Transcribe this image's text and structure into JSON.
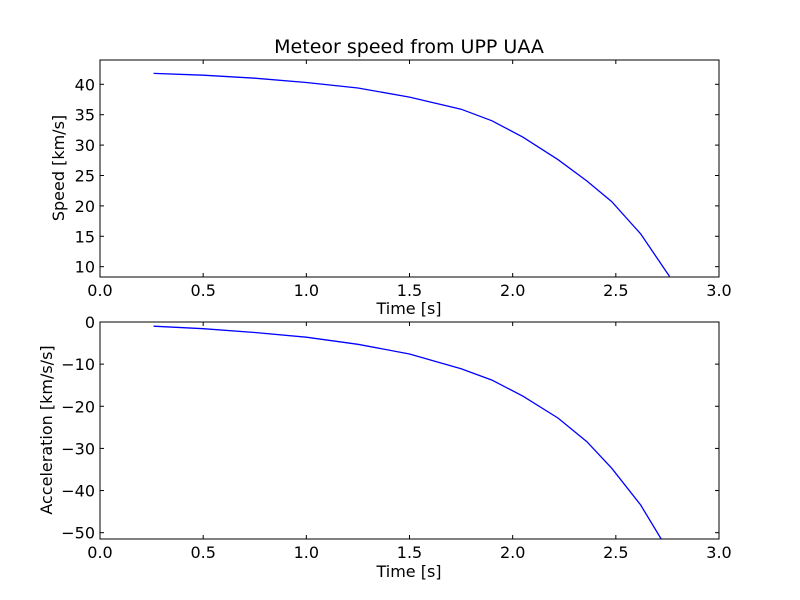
{
  "chart_data": [
    {
      "type": "line",
      "title": "Meteor speed from  UPP UAA",
      "xlabel": "Time [s]",
      "ylabel": "Speed [km/s]",
      "xlim": [
        0.0,
        3.0
      ],
      "ylim": [
        8.3,
        44.0
      ],
      "xticks": [
        0.0,
        0.5,
        1.0,
        1.5,
        2.0,
        2.5,
        3.0
      ],
      "xtick_labels": [
        "0.0",
        "0.5",
        "1.0",
        "1.5",
        "2.0",
        "2.5",
        "3.0"
      ],
      "yticks": [
        10,
        15,
        20,
        25,
        30,
        35,
        40
      ],
      "ytick_labels": [
        "10",
        "15",
        "20",
        "25",
        "30",
        "35",
        "40"
      ],
      "grid": false,
      "series": [
        {
          "color": "#0000ff",
          "x": [
            0.26,
            0.5,
            0.75,
            1.0,
            1.25,
            1.5,
            1.75,
            1.9,
            2.05,
            2.22,
            2.36,
            2.48,
            2.62,
            2.76
          ],
          "y": [
            41.8,
            41.5,
            41.0,
            40.3,
            39.4,
            37.9,
            35.9,
            34.0,
            31.3,
            27.6,
            24.1,
            20.7,
            15.4,
            8.4
          ]
        }
      ]
    },
    {
      "type": "line",
      "title": "",
      "xlabel": "Time [s]",
      "ylabel": "Acceleration [km/s/s]",
      "xlim": [
        0.0,
        3.0
      ],
      "ylim": [
        -51.5,
        0.0
      ],
      "xticks": [
        0.0,
        0.5,
        1.0,
        1.5,
        2.0,
        2.5,
        3.0
      ],
      "xtick_labels": [
        "0.0",
        "0.5",
        "1.0",
        "1.5",
        "2.0",
        "2.5",
        "3.0"
      ],
      "yticks": [
        0,
        -10,
        -20,
        -30,
        -40,
        -50
      ],
      "ytick_labels": [
        "0",
        "−10",
        "−20",
        "−30",
        "−40",
        "−50"
      ],
      "grid": false,
      "series": [
        {
          "color": "#0000ff",
          "x": [
            0.26,
            0.5,
            0.75,
            1.0,
            1.25,
            1.5,
            1.75,
            1.9,
            2.05,
            2.22,
            2.36,
            2.48,
            2.62,
            2.72
          ],
          "y": [
            -1.0,
            -1.6,
            -2.5,
            -3.6,
            -5.3,
            -7.6,
            -11.1,
            -13.8,
            -17.6,
            -22.8,
            -28.4,
            -34.7,
            -43.4,
            -51.5
          ]
        }
      ]
    }
  ]
}
